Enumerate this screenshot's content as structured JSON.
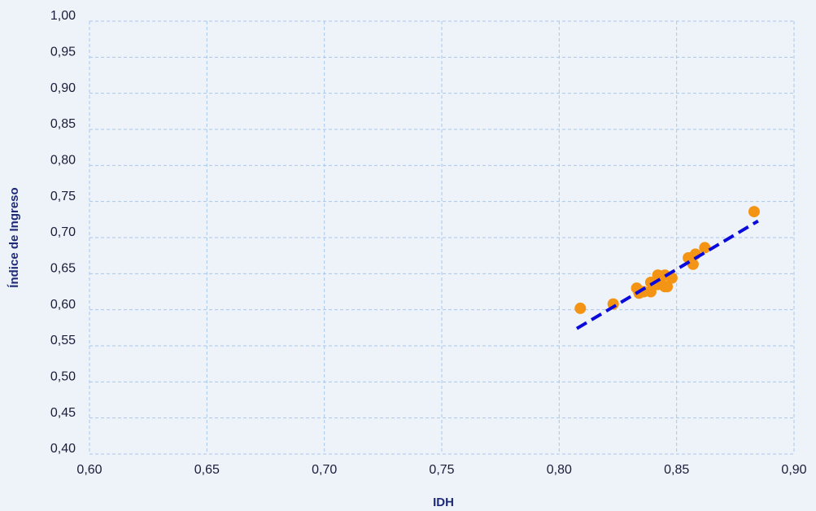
{
  "chart_data": {
    "type": "scatter",
    "xlabel": "IDH",
    "ylabel": "Índice de Ingreso",
    "xlim": [
      0.6,
      0.9
    ],
    "ylim": [
      0.4,
      1.0
    ],
    "xticks": [
      {
        "value": 0.6,
        "label": "0,60"
      },
      {
        "value": 0.65,
        "label": "0,65"
      },
      {
        "value": 0.7,
        "label": "0,70"
      },
      {
        "value": 0.75,
        "label": "0,75"
      },
      {
        "value": 0.8,
        "label": "0,80"
      },
      {
        "value": 0.85,
        "label": "0,85"
      },
      {
        "value": 0.9,
        "label": "0,90"
      }
    ],
    "yticks": [
      {
        "value": 0.4,
        "label": "0,40"
      },
      {
        "value": 0.45,
        "label": "0,45"
      },
      {
        "value": 0.5,
        "label": "0,50"
      },
      {
        "value": 0.55,
        "label": "0,55"
      },
      {
        "value": 0.6,
        "label": "0,60"
      },
      {
        "value": 0.65,
        "label": "0,65"
      },
      {
        "value": 0.7,
        "label": "0,70"
      },
      {
        "value": 0.75,
        "label": "0,75"
      },
      {
        "value": 0.8,
        "label": "0,80"
      },
      {
        "value": 0.85,
        "label": "0,85"
      },
      {
        "value": 0.9,
        "label": "0,90"
      },
      {
        "value": 0.95,
        "label": "0,95"
      },
      {
        "value": 1.0,
        "label": "1,00"
      }
    ],
    "grid": true,
    "series": [
      {
        "color": "#f39414",
        "x": [
          0.809,
          0.823,
          0.833,
          0.834,
          0.836,
          0.839,
          0.839,
          0.842,
          0.842,
          0.843,
          0.845,
          0.845,
          0.846,
          0.848,
          0.855,
          0.857,
          0.858,
          0.862,
          0.883
        ],
        "y": [
          0.602,
          0.608,
          0.63,
          0.623,
          0.625,
          0.638,
          0.625,
          0.648,
          0.635,
          0.64,
          0.632,
          0.648,
          0.632,
          0.644,
          0.672,
          0.663,
          0.677,
          0.686,
          0.736
        ]
      }
    ],
    "trend_line": {
      "color": "#0a0adc",
      "x": [
        0.8075,
        0.8847
      ],
      "y": [
        0.574,
        0.723
      ]
    }
  }
}
